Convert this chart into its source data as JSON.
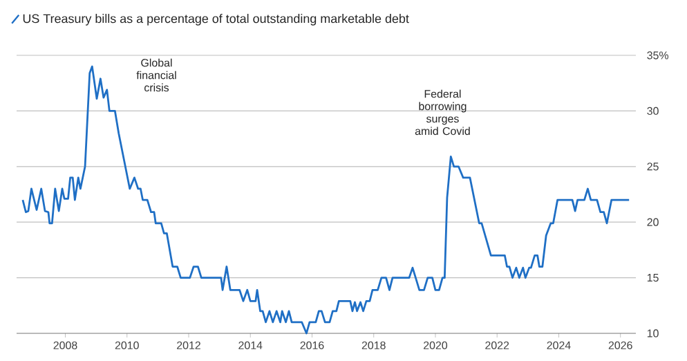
{
  "chart_data": {
    "type": "line",
    "x": [
      2006.62,
      2006.72,
      2006.8,
      2006.9,
      2007.07,
      2007.22,
      2007.34,
      2007.45,
      2007.49,
      2007.57,
      2007.67,
      2007.79,
      2007.9,
      2007.97,
      2008.09,
      2008.16,
      2008.24,
      2008.31,
      2008.42,
      2008.49,
      2008.64,
      2008.79,
      2008.87,
      2009.02,
      2009.14,
      2009.24,
      2009.35,
      2009.43,
      2009.61,
      2009.73,
      2009.91,
      2010.09,
      2010.24,
      2010.36,
      2010.44,
      2010.51,
      2010.66,
      2010.78,
      2010.88,
      2010.93,
      2011.11,
      2011.2,
      2011.29,
      2011.48,
      2011.63,
      2011.74,
      2012.04,
      2012.16,
      2012.3,
      2012.41,
      2013.05,
      2013.1,
      2013.23,
      2013.35,
      2013.65,
      2013.77,
      2013.9,
      2014.0,
      2014.17,
      2014.22,
      2014.32,
      2014.4,
      2014.5,
      2014.62,
      2014.73,
      2014.85,
      2014.97,
      2015.03,
      2015.15,
      2015.25,
      2015.34,
      2015.67,
      2015.82,
      2015.92,
      2016.12,
      2016.22,
      2016.31,
      2016.42,
      2016.57,
      2016.67,
      2016.79,
      2016.87,
      2017.24,
      2017.31,
      2017.39,
      2017.46,
      2017.57,
      2017.66,
      2017.76,
      2017.87,
      2017.96,
      2018.13,
      2018.25,
      2018.4,
      2018.51,
      2018.61,
      2019.15,
      2019.26,
      2019.36,
      2019.48,
      2019.63,
      2019.75,
      2019.9,
      2020.0,
      2020.12,
      2020.23,
      2020.3,
      2020.38,
      2020.5,
      2020.6,
      2020.75,
      2020.9,
      2021.12,
      2021.42,
      2021.5,
      2021.8,
      2022.25,
      2022.32,
      2022.4,
      2022.5,
      2022.62,
      2022.72,
      2022.84,
      2022.92,
      2023.04,
      2023.1,
      2023.22,
      2023.31,
      2023.37,
      2023.47,
      2023.59,
      2023.74,
      2023.82,
      2023.96,
      2024.44,
      2024.53,
      2024.61,
      2024.83,
      2024.94,
      2025.04,
      2025.24,
      2025.35,
      2025.46,
      2025.56,
      2025.71,
      2026.28
    ],
    "series": [
      {
        "name": "US Treasury bills as a percentage of total outstanding marketable debt",
        "color": "#1f6fc5",
        "values": [
          22.0,
          20.9,
          21.0,
          23.0,
          21.1,
          23.0,
          21.0,
          20.9,
          19.9,
          19.9,
          23.0,
          21.0,
          23.0,
          22.1,
          22.1,
          24.0,
          24.0,
          22.0,
          24.0,
          23.0,
          25.0,
          33.4,
          34.0,
          31.1,
          32.9,
          31.2,
          31.9,
          30.0,
          30.0,
          28.0,
          25.5,
          23.0,
          24.0,
          23.0,
          23.0,
          22.0,
          22.0,
          20.9,
          20.9,
          19.9,
          19.9,
          19.0,
          19.0,
          16.0,
          16.0,
          15.0,
          15.0,
          16.0,
          16.0,
          15.0,
          15.0,
          13.9,
          16.0,
          13.9,
          13.9,
          12.9,
          13.9,
          12.9,
          12.9,
          13.9,
          12.0,
          12.0,
          11.0,
          12.0,
          11.0,
          12.0,
          11.0,
          12.0,
          11.0,
          12.0,
          11.0,
          11.0,
          10.0,
          11.0,
          11.0,
          12.0,
          12.0,
          11.0,
          11.0,
          12.0,
          12.0,
          12.9,
          12.9,
          12.0,
          12.8,
          12.0,
          12.8,
          12.0,
          12.9,
          12.9,
          13.9,
          13.9,
          15.0,
          15.0,
          13.9,
          15.0,
          15.0,
          15.9,
          15.0,
          13.9,
          13.9,
          15.0,
          15.0,
          13.9,
          13.9,
          15.0,
          15.0,
          22.2,
          25.9,
          25.0,
          25.0,
          24.0,
          24.0,
          19.9,
          19.9,
          17.0,
          17.0,
          16.0,
          16.0,
          15.0,
          15.9,
          15.0,
          15.9,
          15.0,
          15.9,
          15.9,
          17.0,
          17.0,
          16.0,
          16.0,
          18.8,
          19.9,
          19.9,
          22.0,
          22.0,
          21.0,
          22.0,
          22.0,
          23.0,
          22.0,
          22.0,
          20.9,
          20.9,
          19.9,
          22.0,
          22.0
        ]
      }
    ],
    "xlim": [
      2006.42,
      2026.5
    ],
    "ylim": [
      10,
      35
    ],
    "xticks": [
      2008,
      2010,
      2012,
      2014,
      2016,
      2018,
      2020,
      2022,
      2024,
      2026
    ],
    "yticks": [
      10,
      15,
      20,
      25,
      30,
      {
        "value": 35,
        "label": "35%"
      }
    ],
    "annotations": [
      "Global financial crisis",
      "Federal borrowing surges amid Covid"
    ],
    "grid": "y",
    "legend": "top left",
    "marker": "none",
    "line_style": "solid"
  }
}
